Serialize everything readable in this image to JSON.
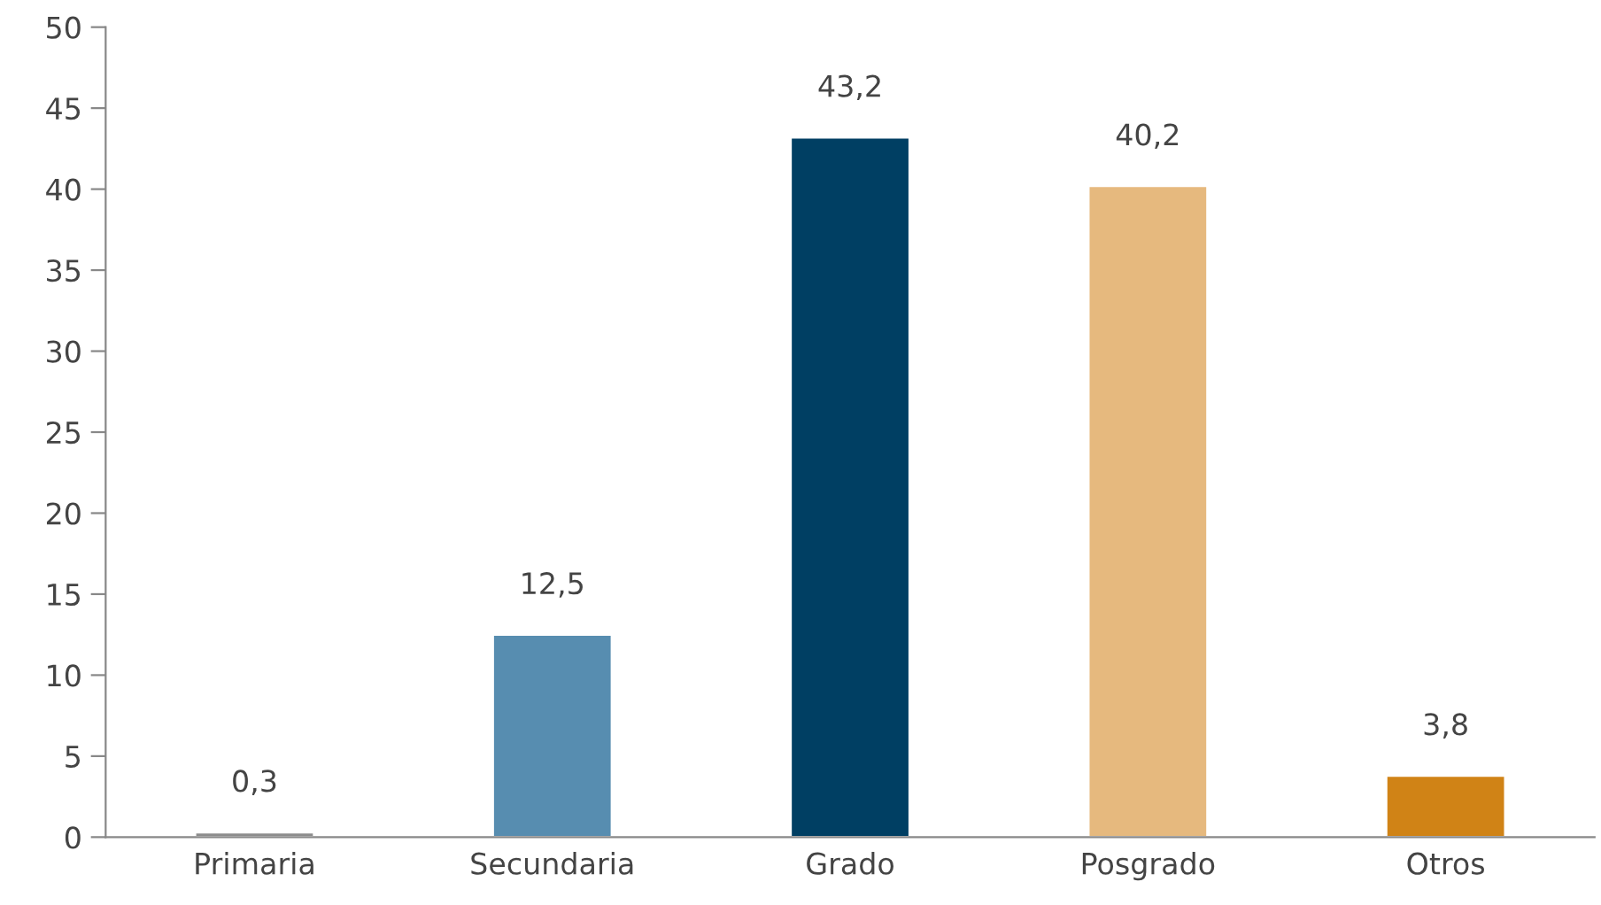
{
  "chart_data": {
    "type": "bar",
    "categories": [
      "Primaria",
      "Secundaria",
      "Grado",
      "Posgrado",
      "Otros"
    ],
    "values": [
      0.3,
      12.5,
      43.2,
      40.2,
      3.8
    ],
    "colors": [
      "#8c8c8c",
      "#578db0",
      "#003f63",
      "#e6b97e",
      "#d08316"
    ],
    "value_labels": [
      "0,3",
      "12,5",
      "43,2",
      "40,2",
      "3,8"
    ],
    "ylim": [
      0,
      50
    ],
    "yticks": [
      0,
      5,
      10,
      15,
      20,
      25,
      30,
      35,
      40,
      45,
      50
    ],
    "grid": false,
    "legend": false
  }
}
